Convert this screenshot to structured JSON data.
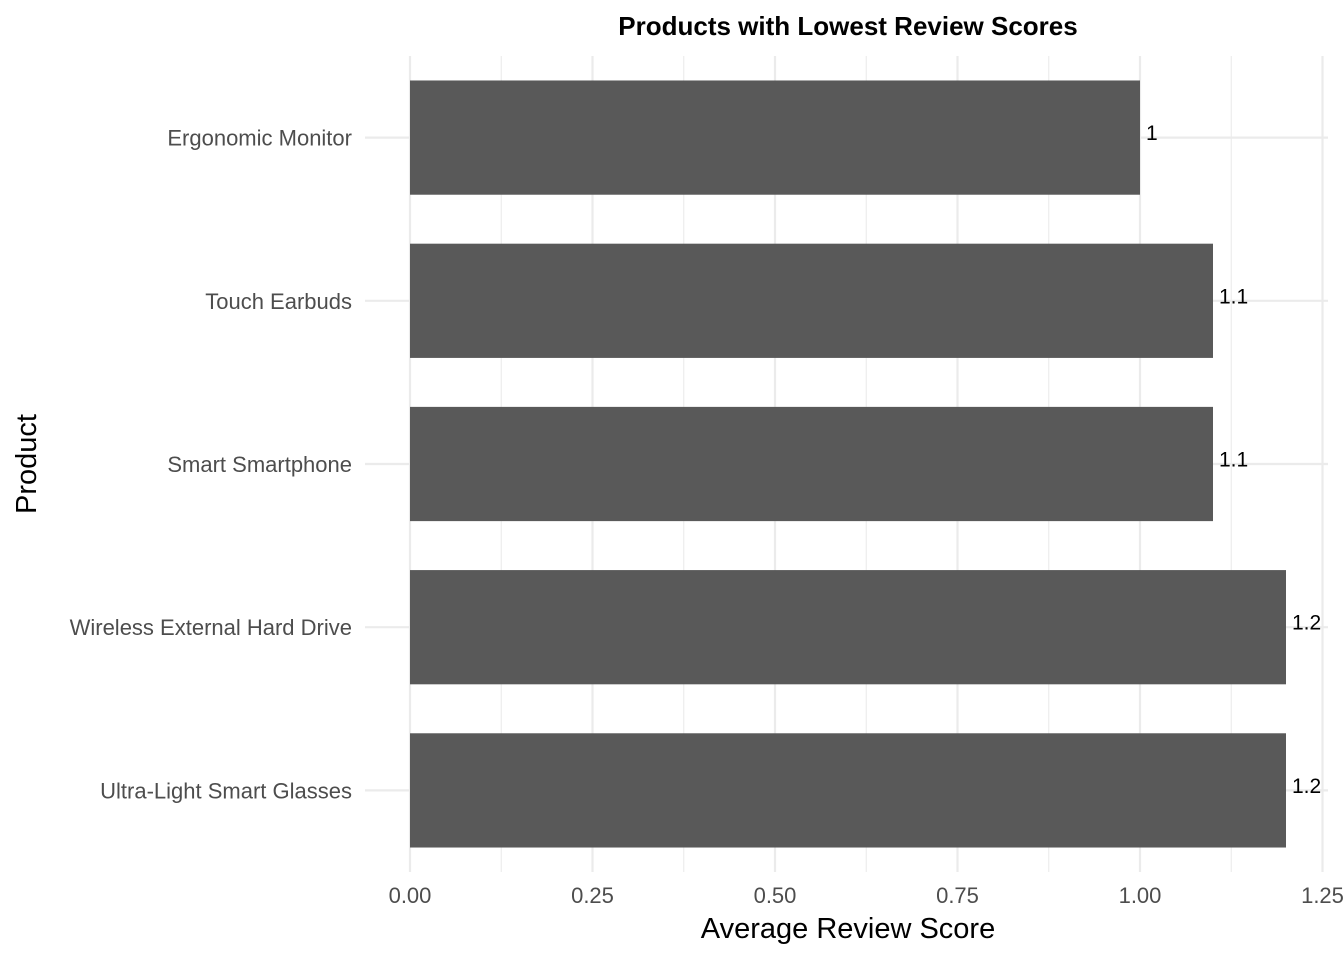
{
  "chart_data": {
    "type": "bar",
    "orientation": "horizontal",
    "title": "Products with Lowest Review Scores",
    "xlabel": "Average Review Score",
    "ylabel": "Product",
    "categories": [
      "Ergonomic Monitor",
      "Touch Earbuds",
      "Smart Smartphone",
      "Wireless External Hard Drive",
      "Ultra-Light Smart Glasses"
    ],
    "values": [
      1.0,
      1.1,
      1.1,
      1.2,
      1.2
    ],
    "data_labels": [
      "1",
      "1.1",
      "1.1",
      "1.2",
      "1.2"
    ],
    "xlim": [
      0,
      1.26
    ],
    "x_ticks": [
      0,
      0.25,
      0.5,
      0.75,
      1.0,
      1.25
    ],
    "x_tick_labels": [
      "0.00",
      "0.25",
      "0.50",
      "0.75",
      "1.00",
      "1.25"
    ],
    "grid": true,
    "legend": "none",
    "colors": {
      "bar": "#595959",
      "grid": "#ebebeb",
      "background": "#ffffff"
    }
  }
}
